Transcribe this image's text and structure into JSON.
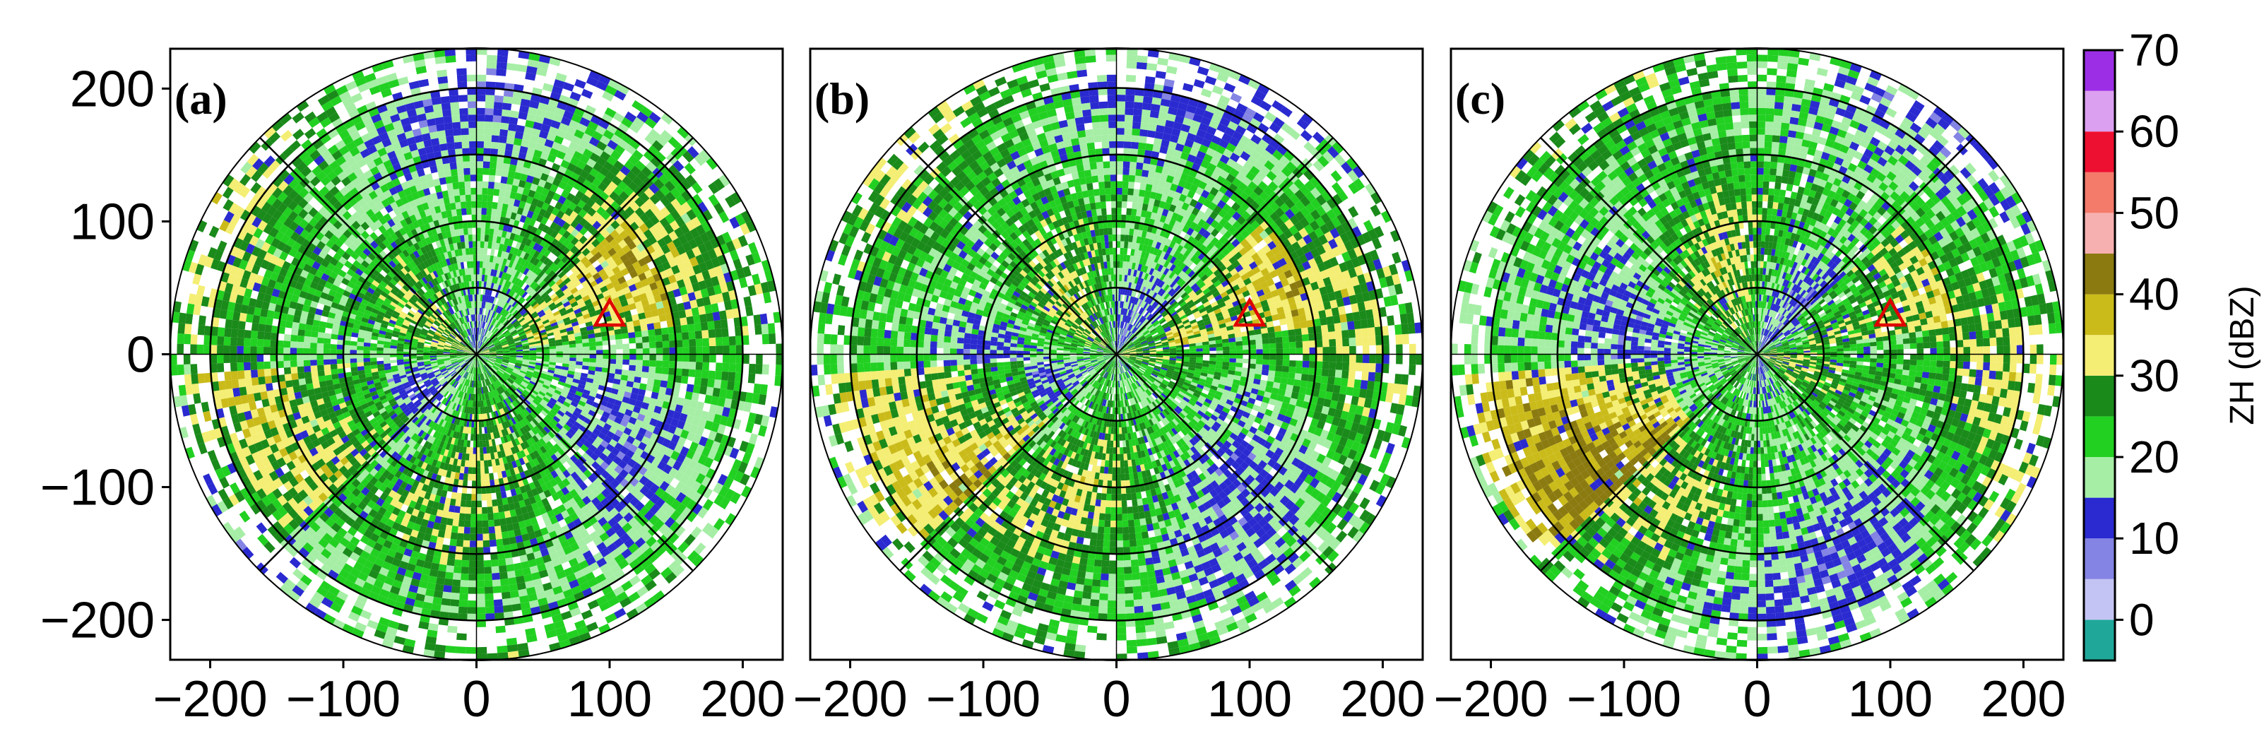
{
  "chart_data": [
    {
      "type": "heatmap",
      "label": "(a)",
      "subtype": "polar radar PPI",
      "xlim": [
        -230,
        230
      ],
      "ylim": [
        -230,
        230
      ],
      "xticks": [
        -200,
        -100,
        0,
        100,
        200
      ],
      "yticks": [
        -200,
        -100,
        0,
        100,
        200
      ],
      "range_rings": [
        50,
        100,
        150,
        200
      ],
      "marker": {
        "shape": "triangle",
        "x": 100,
        "y": 30,
        "color": "#e00000"
      }
    },
    {
      "type": "heatmap",
      "label": "(b)",
      "subtype": "polar radar PPI",
      "xlim": [
        -230,
        230
      ],
      "ylim": [
        -230,
        230
      ],
      "xticks": [
        -200,
        -100,
        0,
        100,
        200
      ],
      "range_rings": [
        50,
        100,
        150,
        200
      ],
      "marker": {
        "shape": "triangle",
        "x": 100,
        "y": 30,
        "color": "#e00000"
      }
    },
    {
      "type": "heatmap",
      "label": "(c)",
      "subtype": "polar radar PPI",
      "xlim": [
        -230,
        230
      ],
      "ylim": [
        -230,
        230
      ],
      "xticks": [
        -200,
        -100,
        0,
        100,
        200
      ],
      "range_rings": [
        50,
        100,
        150,
        200
      ],
      "marker": {
        "shape": "triangle",
        "x": 100,
        "y": 30,
        "color": "#e00000"
      }
    }
  ],
  "colorbar": {
    "label": "ZH (dBZ)",
    "range": [
      -5,
      70
    ],
    "ticks": [
      0,
      10,
      20,
      30,
      40,
      50,
      60,
      70
    ],
    "bins": [
      {
        "from": -5,
        "to": 0,
        "color": "#1fa89a"
      },
      {
        "from": 0,
        "to": 5,
        "color": "#c4c4f4"
      },
      {
        "from": 5,
        "to": 10,
        "color": "#8484e4"
      },
      {
        "from": 10,
        "to": 15,
        "color": "#2a2ad0"
      },
      {
        "from": 15,
        "to": 20,
        "color": "#a6eea6"
      },
      {
        "from": 20,
        "to": 25,
        "color": "#22d022"
      },
      {
        "from": 25,
        "to": 30,
        "color": "#1a8a1a"
      },
      {
        "from": 30,
        "to": 35,
        "color": "#f4ee74"
      },
      {
        "from": 35,
        "to": 40,
        "color": "#cabb1a"
      },
      {
        "from": 40,
        "to": 45,
        "color": "#8a7a10"
      },
      {
        "from": 45,
        "to": 50,
        "color": "#f6b0b0"
      },
      {
        "from": 50,
        "to": 55,
        "color": "#f47a6a"
      },
      {
        "from": 55,
        "to": 60,
        "color": "#ee1030"
      },
      {
        "from": 60,
        "to": 65,
        "color": "#dca0f0"
      },
      {
        "from": 65,
        "to": 70,
        "color": "#9c2ee6"
      }
    ]
  }
}
